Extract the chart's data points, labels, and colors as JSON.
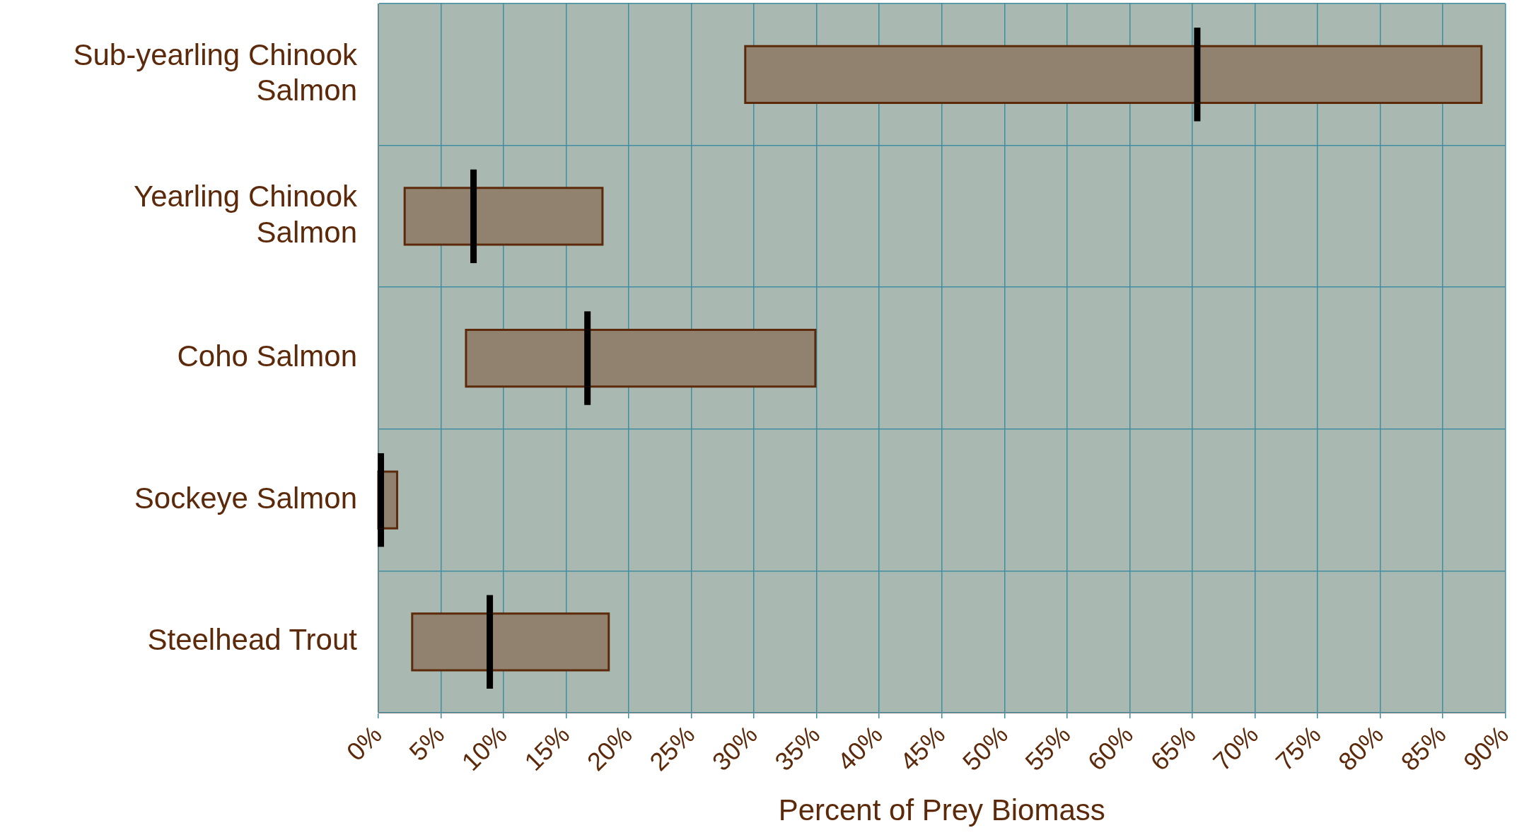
{
  "chart_data": {
    "type": "box",
    "orientation": "horizontal",
    "xlabel": "Percent of Prey Biomass",
    "categories": [
      "Sub-yearling Chinook Salmon",
      "Yearling Chinook Salmon",
      "Coho Salmon",
      "Sockeye Salmon",
      "Steelhead Trout"
    ],
    "color": "#918270",
    "boxes": [
      {
        "low": 29.3,
        "q1": 29.3,
        "median": 65.4,
        "q3": 88.1,
        "high": 88.1
      },
      {
        "low": 2.1,
        "q1": 2.1,
        "median": 7.6,
        "q3": 17.9,
        "high": 17.9
      },
      {
        "low": 7.0,
        "q1": 7.0,
        "median": 16.7,
        "q3": 34.9,
        "high": 34.9
      },
      {
        "low": 0,
        "q1": 0,
        "median": 0.2,
        "q3": 1.5,
        "high": 1.5
      },
      {
        "low": 2.7,
        "q1": 2.7,
        "median": 8.9,
        "q3": 18.4,
        "high": 18.4
      }
    ],
    "xlim": [
      0,
      90
    ],
    "xticks": [
      {
        "value": 0,
        "label": "0%"
      },
      {
        "value": 5,
        "label": "5%"
      },
      {
        "value": 10,
        "label": "10%"
      },
      {
        "value": 15,
        "label": "15%"
      },
      {
        "value": 20,
        "label": "20%"
      },
      {
        "value": 25,
        "label": "25%"
      },
      {
        "value": 30,
        "label": "30%"
      },
      {
        "value": 35,
        "label": "35%"
      },
      {
        "value": 40,
        "label": "40%"
      },
      {
        "value": 45,
        "label": "45%"
      },
      {
        "value": 50,
        "label": "50%"
      },
      {
        "value": 55,
        "label": "55%"
      },
      {
        "value": 60,
        "label": "60%"
      },
      {
        "value": 65,
        "label": "65%"
      },
      {
        "value": 70,
        "label": "70%"
      },
      {
        "value": 75,
        "label": "75%"
      },
      {
        "value": 80,
        "label": "80%"
      },
      {
        "value": 85,
        "label": "85%"
      },
      {
        "value": 90,
        "label": "90%"
      }
    ],
    "grid": true,
    "legend": false
  }
}
